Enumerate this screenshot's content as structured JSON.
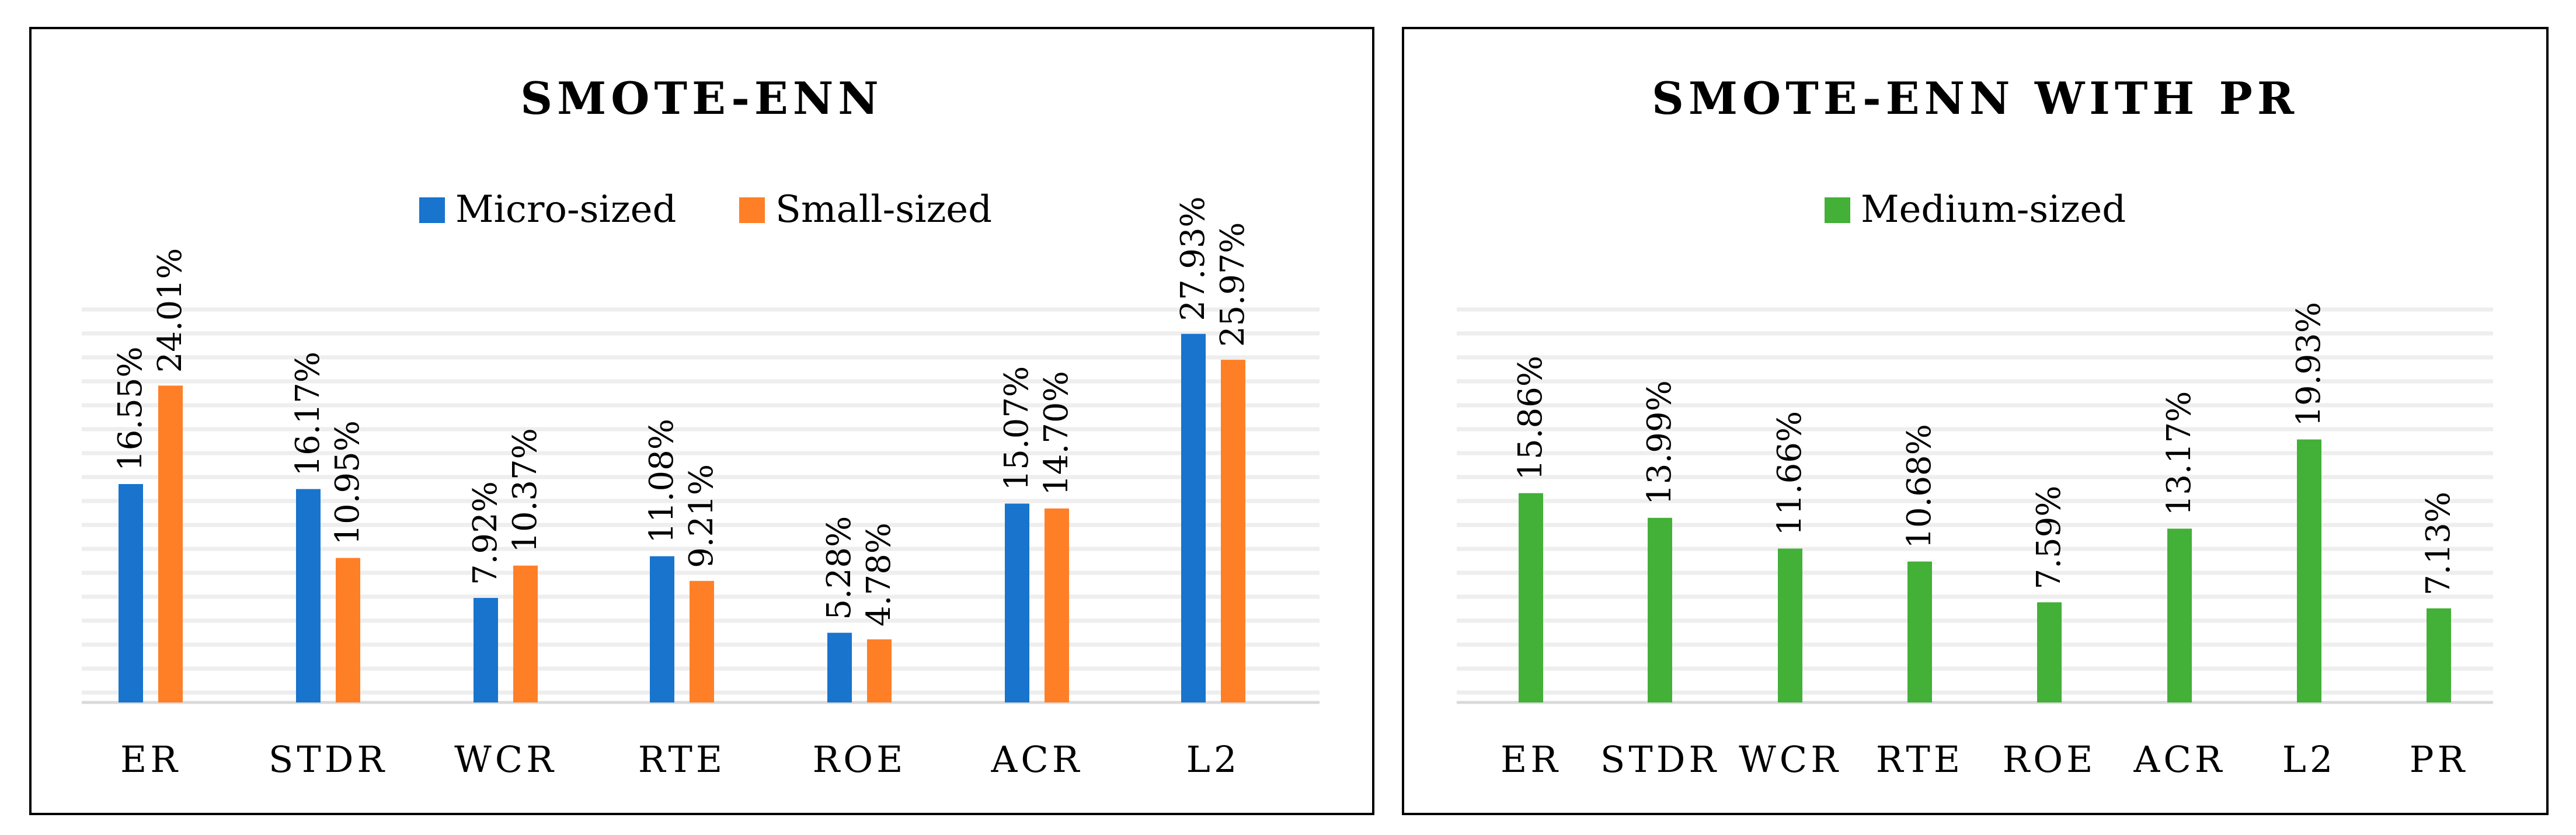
{
  "colors": {
    "micro": "#1874CD",
    "small": "#FF7F27",
    "medium": "#43B037"
  },
  "chart_data": [
    {
      "type": "bar",
      "title": "SMOTE-ENN",
      "categories": [
        "ER",
        "STDR",
        "WCR",
        "RTE",
        "ROE",
        "ACR",
        "L2"
      ],
      "series": [
        {
          "name": "Micro-sized",
          "values": [
            16.55,
            16.17,
            7.92,
            11.08,
            5.28,
            15.07,
            27.93
          ],
          "labels": [
            "16.55%",
            "16.17%",
            "7.92%",
            "11.08%",
            "5.28%",
            "15.07%",
            "27.93%"
          ]
        },
        {
          "name": "Small-sized",
          "values": [
            24.01,
            10.95,
            10.37,
            9.21,
            4.78,
            14.7,
            25.97
          ],
          "labels": [
            "24.01%",
            "10.95%",
            "10.37%",
            "9.21%",
            "4.78%",
            "14.70%",
            "25.97%"
          ]
        }
      ],
      "ylim": [
        0,
        30
      ],
      "legend": "top-center",
      "grid": true
    },
    {
      "type": "bar",
      "title": "SMOTE-ENN WITH PR",
      "categories": [
        "ER",
        "STDR",
        "WCR",
        "RTE",
        "ROE",
        "ACR",
        "L2",
        "PR"
      ],
      "series": [
        {
          "name": "Medium-sized",
          "values": [
            15.86,
            13.99,
            11.66,
            10.68,
            7.59,
            13.17,
            19.93,
            7.13
          ],
          "labels": [
            "15.86%",
            "13.99%",
            "11.66%",
            "10.68%",
            "7.59%",
            "13.17%",
            "19.93%",
            "7.13%"
          ]
        }
      ],
      "ylim": [
        0,
        30
      ],
      "legend": "top-center",
      "grid": true
    }
  ]
}
